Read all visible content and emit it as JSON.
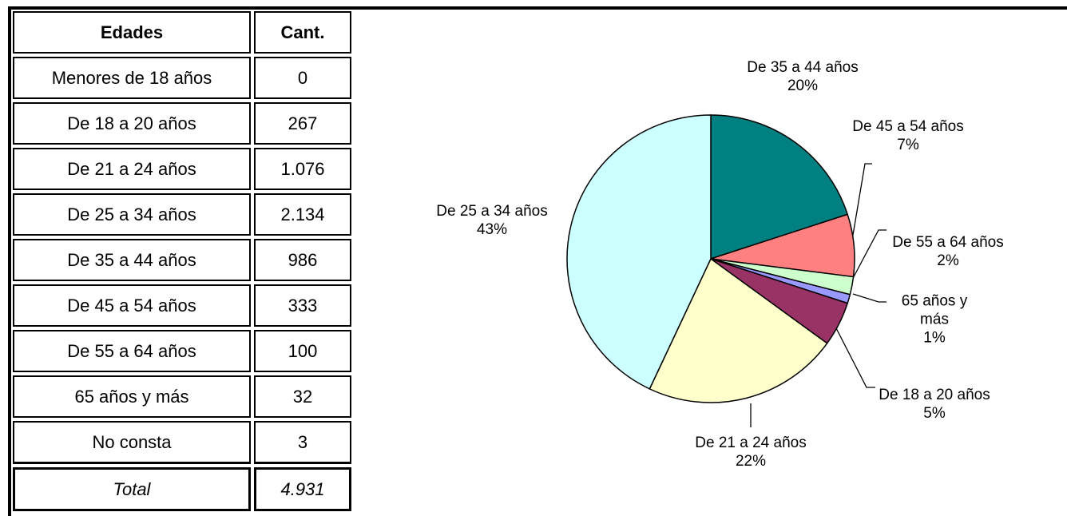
{
  "table": {
    "header": [
      "Edades",
      "Cant."
    ],
    "rows": [
      [
        "Menores de 18 años",
        "0"
      ],
      [
        "De 18 a 20 años",
        "267"
      ],
      [
        "De 21 a 24 años",
        "1.076"
      ],
      [
        "De 25 a 34 años",
        "2.134"
      ],
      [
        "De 35 a 44 años",
        "986"
      ],
      [
        "De 45 a 54 años",
        "333"
      ],
      [
        "De 55 a 64 años",
        "100"
      ],
      [
        "65 años y más",
        "32"
      ],
      [
        "No consta",
        "3"
      ]
    ],
    "total": [
      "Total",
      "4.931"
    ]
  },
  "chart_data": {
    "type": "pie",
    "categories": [
      "De 35 a 44 años",
      "De 45 a 54 años",
      "De 55 a 64 años",
      "65 años y más",
      "De 18 a 20 años",
      "De 21 a 24 años",
      "De 25 a 34 años"
    ],
    "values": [
      20,
      7,
      2,
      1,
      5,
      22,
      43
    ],
    "value_labels": [
      "20%",
      "7%",
      "2%",
      "1%",
      "5%",
      "22%",
      "43%"
    ],
    "colors": [
      "#008080",
      "#ff8080",
      "#ccffcc",
      "#9999ff",
      "#993366",
      "#ffffcc",
      "#ccffff"
    ]
  }
}
